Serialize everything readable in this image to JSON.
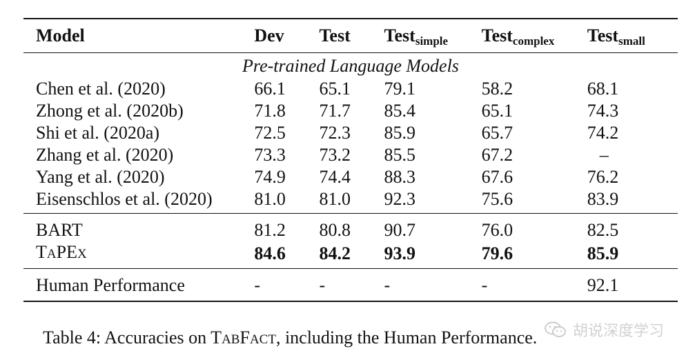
{
  "table": {
    "headers": {
      "model": "Model",
      "dev": "Dev",
      "test": "Test",
      "test_simple": {
        "base": "Test",
        "sub": "simple"
      },
      "test_complex": {
        "base": "Test",
        "sub": "complex"
      },
      "test_small": {
        "base": "Test",
        "sub": "small"
      }
    },
    "section_label": "Pre-trained Language Models",
    "pretrained_rows": [
      {
        "model": "Chen et al. (2020)",
        "dev": "66.1",
        "test": "65.1",
        "simple": "79.1",
        "complex": "58.2",
        "small": "68.1"
      },
      {
        "model": "Zhong et al. (2020b)",
        "dev": "71.8",
        "test": "71.7",
        "simple": "85.4",
        "complex": "65.1",
        "small": "74.3"
      },
      {
        "model": "Shi et al. (2020a)",
        "dev": "72.5",
        "test": "72.3",
        "simple": "85.9",
        "complex": "65.7",
        "small": "74.2"
      },
      {
        "model": "Zhang et al. (2020)",
        "dev": "73.3",
        "test": "73.2",
        "simple": "85.5",
        "complex": "67.2",
        "small": "–"
      },
      {
        "model": "Yang et al. (2020)",
        "dev": "74.9",
        "test": "74.4",
        "simple": "88.3",
        "complex": "67.6",
        "small": "76.2"
      },
      {
        "model": "Eisenschlos et al. (2020)",
        "dev": "81.0",
        "test": "81.0",
        "simple": "92.3",
        "complex": "75.6",
        "small": "83.9"
      }
    ],
    "bart_row": {
      "model": "BART",
      "dev": "81.2",
      "test": "80.8",
      "simple": "90.7",
      "complex": "76.0",
      "small": "82.5"
    },
    "tapex_row": {
      "model_parts": {
        "t": "T",
        "a": "A",
        "pe": "PE",
        "x": "X"
      },
      "dev": "84.6",
      "test": "84.2",
      "simple": "93.9",
      "complex": "79.6",
      "small": "85.9"
    },
    "human_row": {
      "model": "Human Performance",
      "dev": "-",
      "test": "-",
      "simple": "-",
      "complex": "-",
      "small": "92.1"
    }
  },
  "caption": {
    "prefix": "Table 4: Accuracies on ",
    "tab_t": "T",
    "tab_ab": "AB",
    "fact_f": "F",
    "fact_act": "ACT",
    "suffix": ", including the Human Performance."
  },
  "watermark": {
    "text": "胡说深度学习",
    "icon": "wechat-icon"
  }
}
